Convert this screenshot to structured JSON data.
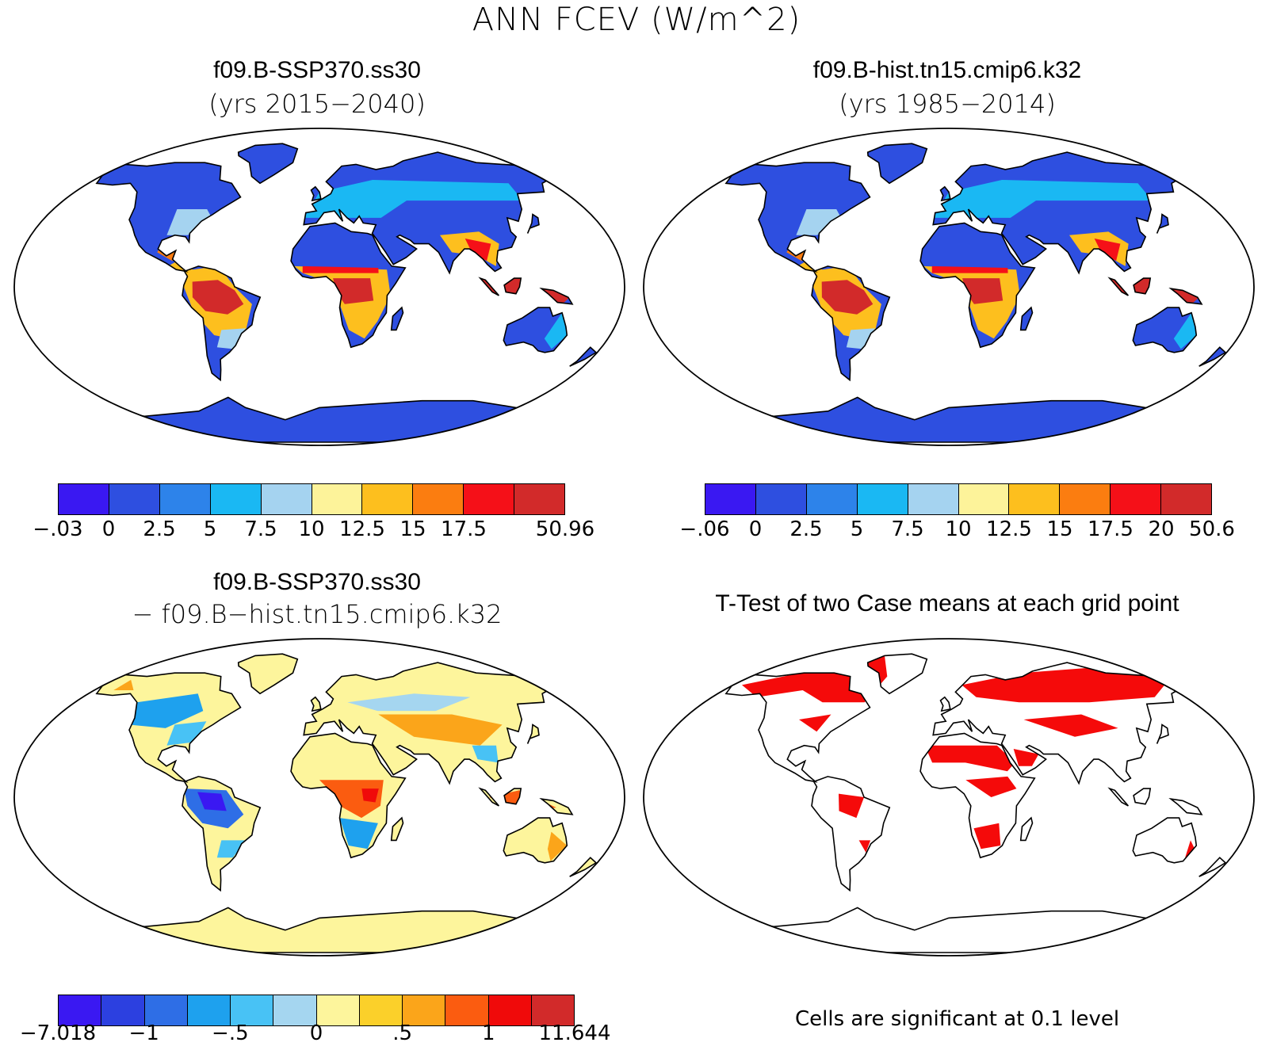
{
  "figure": {
    "title": "ANN FCEV (W/m^2)",
    "colors": {
      "ocean": "#ffffff",
      "outline": "#000000",
      "abs_palette": [
        "#3a18f2",
        "#2e4fe0",
        "#2d83ea",
        "#1ab8f3",
        "#a5d3f0",
        "#fdf39a",
        "#fdbf1e",
        "#fb7d10",
        "#f51018",
        "#d22a2a"
      ],
      "diff_palette": [
        "#3a18f2",
        "#2c40e0",
        "#2e6ee6",
        "#1ea1ee",
        "#48c2f5",
        "#a5d6f0",
        "#fdf59c",
        "#fbd02a",
        "#fba51a",
        "#fb5c10",
        "#f00a0a",
        "#d22a2a"
      ],
      "sig_color": "#f50a0a"
    }
  },
  "panels": [
    {
      "id": "case1",
      "title": "f09.B-SSP370.ss30",
      "subtitle": "(yrs 2015−2040)",
      "colorbar_labels": [
        "−.03",
        "0",
        "2.5",
        "5",
        "7.5",
        "10",
        "12.5",
        "15",
        "17.5",
        "50.96"
      ]
    },
    {
      "id": "case2",
      "title": "f09.B-hist.tn15.cmip6.k32",
      "subtitle": "(yrs 1985−2014)",
      "colorbar_labels": [
        "−.06",
        "0",
        "2.5",
        "5",
        "7.5",
        "10",
        "12.5",
        "15",
        "17.5",
        "20",
        "50.6"
      ]
    },
    {
      "id": "diff",
      "title": "f09.B-SSP370.ss30",
      "subtitle": "− f09.B−hist.tn15.cmip6.k32",
      "colorbar_labels": [
        "−7.018",
        "−1",
        "−.5",
        "0",
        ".5",
        "1",
        "11.644"
      ]
    },
    {
      "id": "ttest",
      "title": "T-Test of two Case means at each grid point",
      "note": "Cells are significant at 0.1 level"
    }
  ]
}
